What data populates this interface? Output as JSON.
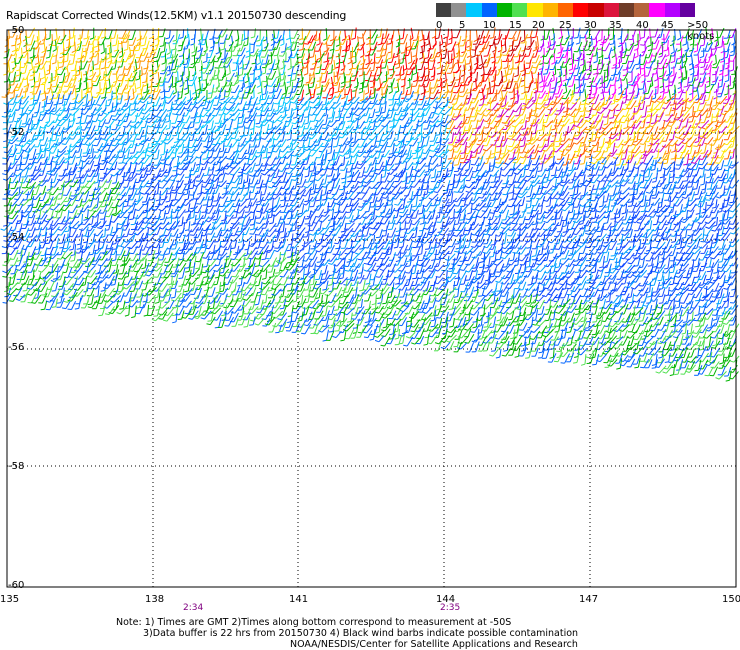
{
  "title": "Rapidscat Corrected Winds(12.5KM) v1.1 20150730 descending",
  "legend": {
    "labels": [
      "0",
      "5",
      "10",
      "15",
      "20",
      "25",
      "30",
      "35",
      "40",
      "45",
      ">50 knots"
    ],
    "colors": [
      "#404040",
      "#909090",
      "#00c8ff",
      "#0064ff",
      "#00b400",
      "#50e050",
      "#ffe600",
      "#ffb400",
      "#ff6400",
      "#ff0000",
      "#c80000",
      "#dc143c",
      "#6e3c28",
      "#b4643c",
      "#ff00ff",
      "#b400ff",
      "#6400a0"
    ]
  },
  "map": {
    "lat_labels": [
      "-50",
      "-52",
      "-54",
      "-56",
      "-58",
      "-60"
    ],
    "lon_labels": [
      "135",
      "138",
      "141",
      "144",
      "147",
      "150"
    ],
    "pass_times": [
      "2:34",
      "2:35"
    ]
  },
  "notes": {
    "line1": "Note: 1) Times are GMT 2)Times along bottom correspond to measurement at -50S",
    "line2": "3)Data buffer is 22 hrs from 20150730 4) Black wind barbs indicate possible contamination",
    "line3": "NOAA/NESDIS/Center for Satellite Applications and Research"
  }
}
